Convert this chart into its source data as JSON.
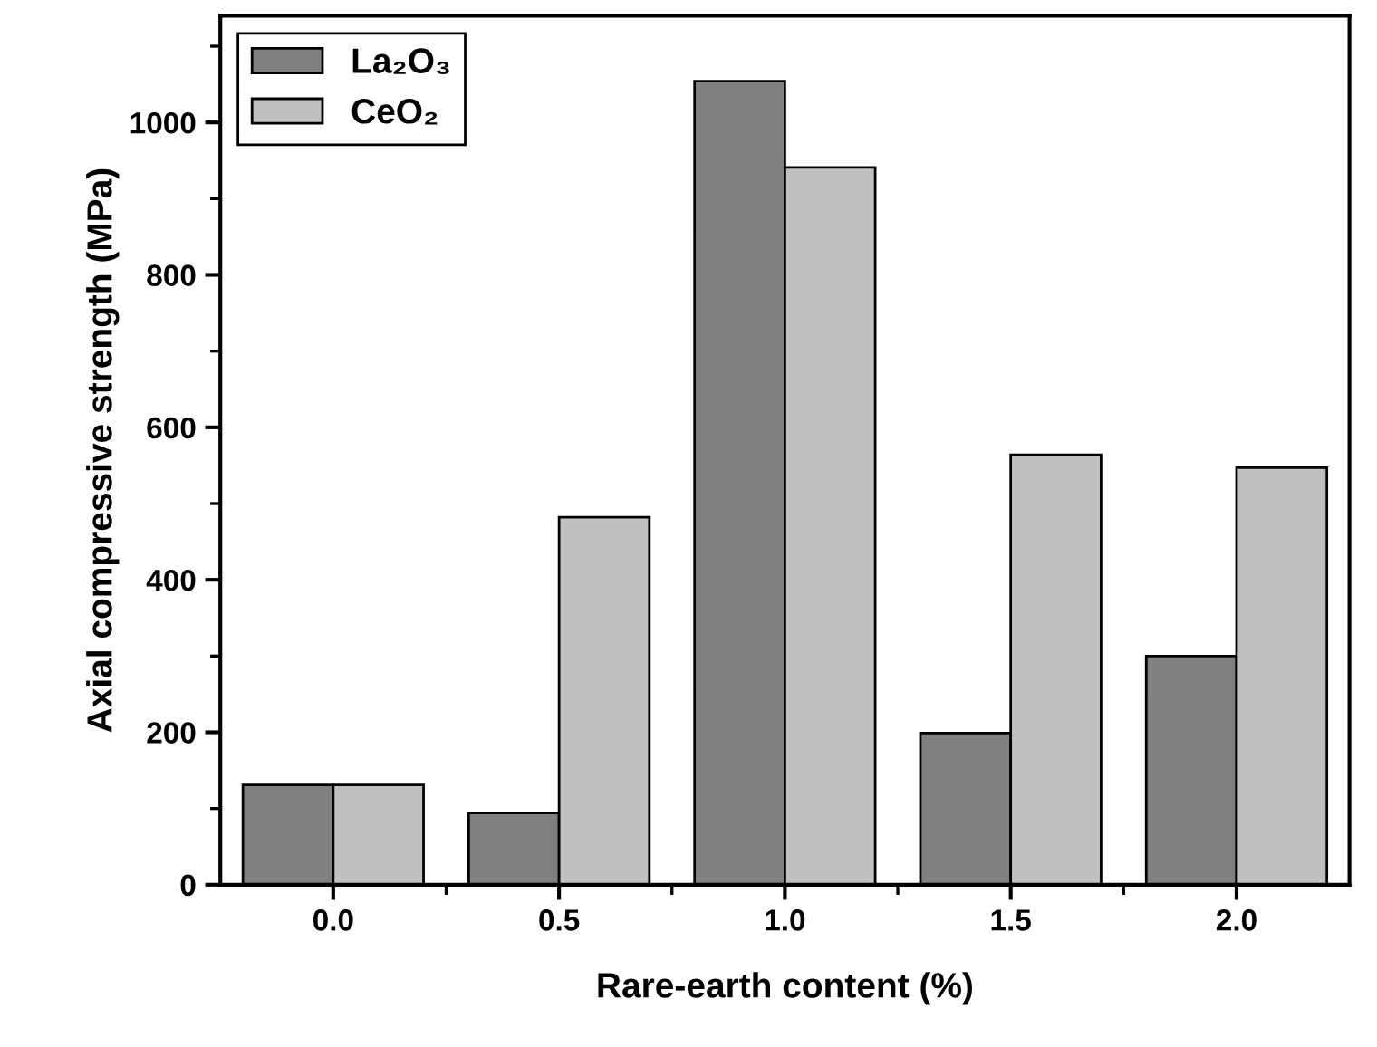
{
  "chart_data": {
    "type": "bar",
    "xlabel": "Rare-earth content (%)",
    "ylabel": "Axial compressive strength (MPa)",
    "categories": [
      "0.0",
      "0.5",
      "1.0",
      "1.5",
      "2.0"
    ],
    "series": [
      {
        "name": "La₂O₃",
        "color": "#808080",
        "values": [
          131,
          94,
          1054,
          199,
          300
        ]
      },
      {
        "name": "CeO₂",
        "color": "#c0c0c0",
        "values": [
          131,
          482,
          941,
          564,
          547
        ]
      }
    ],
    "ylim": [
      0,
      1140
    ],
    "yticks": [
      0,
      200,
      400,
      600,
      800,
      1000
    ],
    "grid": false,
    "legend": "top left"
  }
}
